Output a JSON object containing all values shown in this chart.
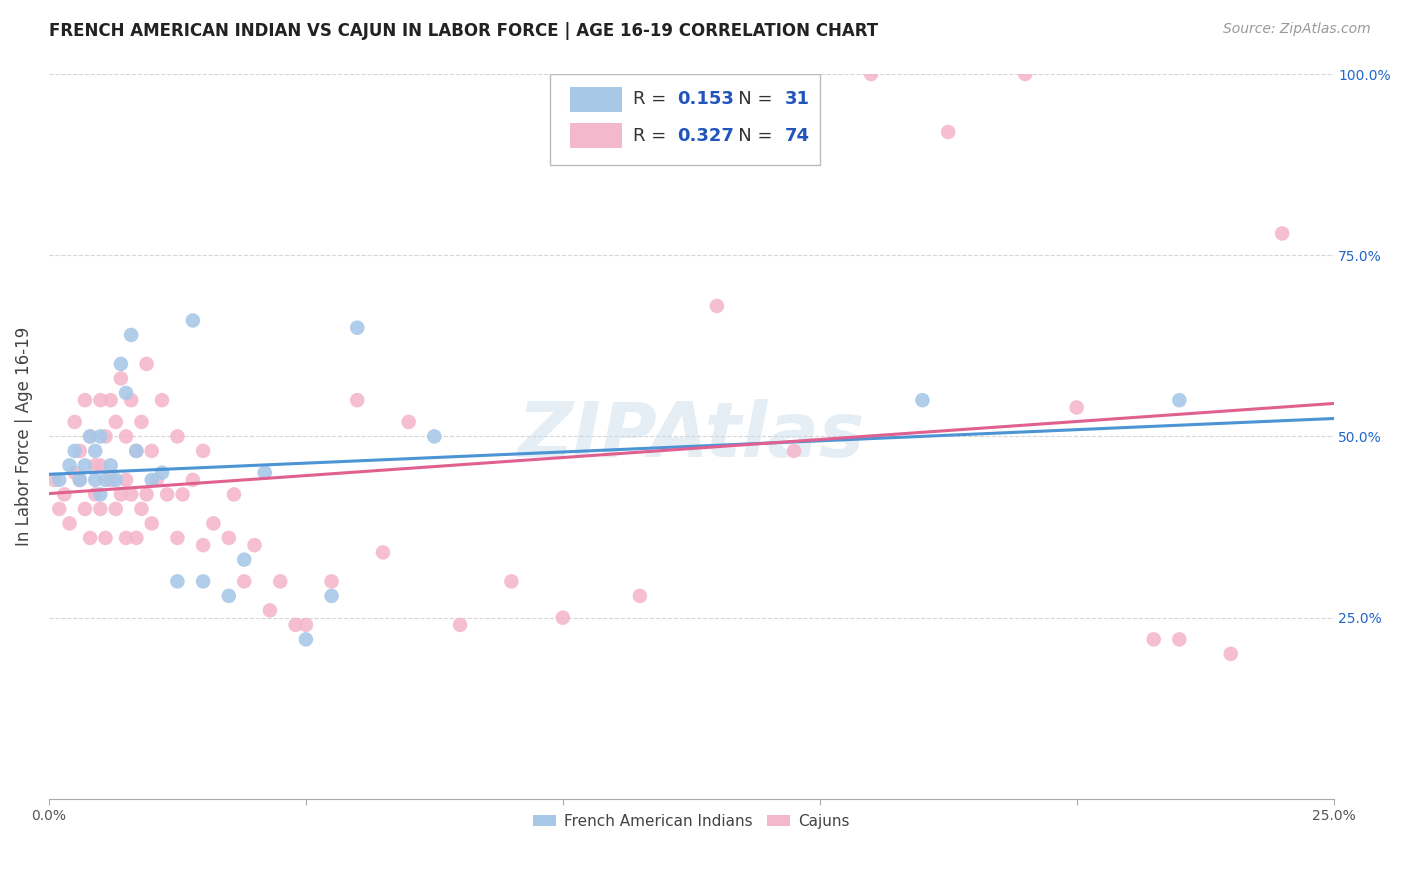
{
  "title": "FRENCH AMERICAN INDIAN VS CAJUN IN LABOR FORCE | AGE 16-19 CORRELATION CHART",
  "source": "Source: ZipAtlas.com",
  "ylabel": "In Labor Force | Age 16-19",
  "xlim": [
    0.0,
    0.25
  ],
  "ylim": [
    0.0,
    1.0
  ],
  "xtick_vals": [
    0.0,
    0.05,
    0.1,
    0.15,
    0.2,
    0.25
  ],
  "xticklabels": [
    "0.0%",
    "",
    "",
    "",
    "",
    "25.0%"
  ],
  "ytick_vals": [
    0.0,
    0.25,
    0.5,
    0.75,
    1.0
  ],
  "yticklabels": [
    "",
    "25.0%",
    "50.0%",
    "75.0%",
    "100.0%"
  ],
  "blue_color": "#a8c8e8",
  "pink_color": "#f4b8cc",
  "blue_line_color": "#4d94d5",
  "pink_line_color": "#e06090",
  "R_blue": 0.153,
  "N_blue": 31,
  "R_pink": 0.327,
  "N_pink": 74,
  "legend_N_color": "#2255bb",
  "legend_R_val_color": "#2255bb",
  "watermark": "ZIPAtlas",
  "blue_scatter_x": [
    0.002,
    0.004,
    0.005,
    0.006,
    0.007,
    0.008,
    0.009,
    0.009,
    0.01,
    0.01,
    0.011,
    0.012,
    0.013,
    0.014,
    0.015,
    0.016,
    0.017,
    0.02,
    0.022,
    0.025,
    0.028,
    0.03,
    0.035,
    0.038,
    0.042,
    0.05,
    0.055,
    0.06,
    0.075,
    0.17,
    0.22
  ],
  "blue_scatter_y": [
    0.44,
    0.46,
    0.48,
    0.44,
    0.46,
    0.5,
    0.44,
    0.48,
    0.42,
    0.5,
    0.44,
    0.46,
    0.44,
    0.6,
    0.56,
    0.64,
    0.48,
    0.44,
    0.45,
    0.3,
    0.66,
    0.3,
    0.28,
    0.33,
    0.45,
    0.22,
    0.28,
    0.65,
    0.5,
    0.55,
    0.55
  ],
  "pink_scatter_x": [
    0.001,
    0.002,
    0.003,
    0.004,
    0.005,
    0.005,
    0.006,
    0.006,
    0.007,
    0.007,
    0.008,
    0.008,
    0.009,
    0.009,
    0.01,
    0.01,
    0.01,
    0.011,
    0.011,
    0.012,
    0.012,
    0.013,
    0.013,
    0.014,
    0.014,
    0.015,
    0.015,
    0.015,
    0.016,
    0.016,
    0.017,
    0.017,
    0.018,
    0.018,
    0.019,
    0.019,
    0.02,
    0.02,
    0.021,
    0.022,
    0.023,
    0.025,
    0.025,
    0.026,
    0.028,
    0.03,
    0.03,
    0.032,
    0.035,
    0.036,
    0.038,
    0.04,
    0.043,
    0.045,
    0.048,
    0.05,
    0.055,
    0.06,
    0.065,
    0.07,
    0.08,
    0.09,
    0.1,
    0.115,
    0.13,
    0.145,
    0.16,
    0.175,
    0.19,
    0.2,
    0.215,
    0.22,
    0.23,
    0.24
  ],
  "pink_scatter_y": [
    0.44,
    0.4,
    0.42,
    0.38,
    0.45,
    0.52,
    0.44,
    0.48,
    0.4,
    0.55,
    0.36,
    0.5,
    0.42,
    0.46,
    0.4,
    0.46,
    0.55,
    0.36,
    0.5,
    0.44,
    0.55,
    0.4,
    0.52,
    0.42,
    0.58,
    0.36,
    0.44,
    0.5,
    0.42,
    0.55,
    0.36,
    0.48,
    0.4,
    0.52,
    0.42,
    0.6,
    0.38,
    0.48,
    0.44,
    0.55,
    0.42,
    0.36,
    0.5,
    0.42,
    0.44,
    0.35,
    0.48,
    0.38,
    0.36,
    0.42,
    0.3,
    0.35,
    0.26,
    0.3,
    0.24,
    0.24,
    0.3,
    0.55,
    0.34,
    0.52,
    0.24,
    0.3,
    0.25,
    0.28,
    0.68,
    0.48,
    1.0,
    0.92,
    1.0,
    0.54,
    0.22,
    0.22,
    0.2,
    0.78
  ],
  "title_fontsize": 12,
  "axis_label_fontsize": 12,
  "tick_fontsize": 10,
  "legend_fontsize": 13,
  "source_fontsize": 10
}
